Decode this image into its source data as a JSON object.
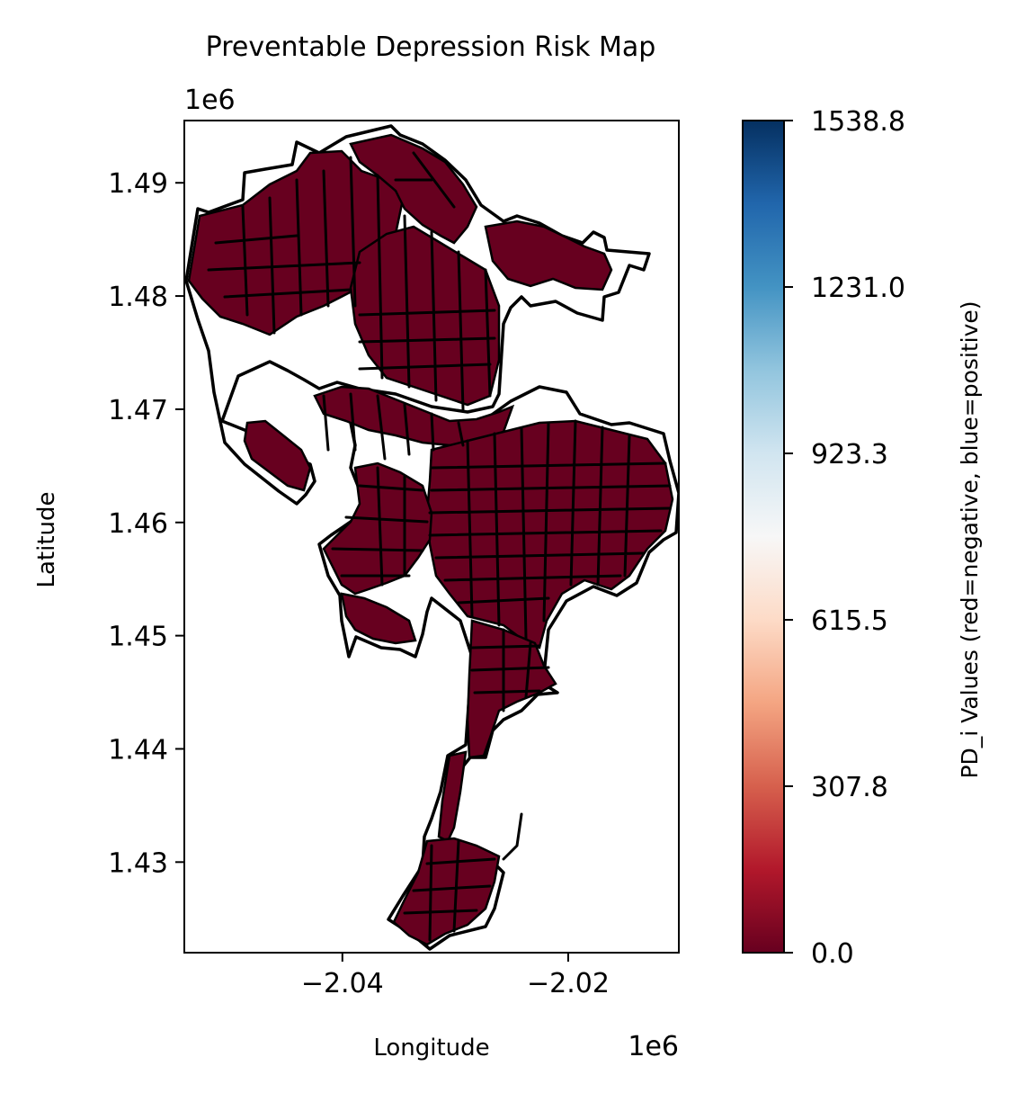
{
  "title": "Preventable Depression Risk Map",
  "x_axis": {
    "label": "Longitude",
    "offset_text": "1e6",
    "range": [
      -2.054,
      -2.0102
    ],
    "ticks": [
      {
        "value": -2.04,
        "label": "−2.04"
      },
      {
        "value": -2.02,
        "label": "−2.02"
      }
    ]
  },
  "y_axis": {
    "label": "Latitude",
    "offset_text": "1e6",
    "range": [
      1.422,
      1.4955
    ],
    "ticks": [
      {
        "value": 1.43,
        "label": "1.43"
      },
      {
        "value": 1.44,
        "label": "1.44"
      },
      {
        "value": 1.45,
        "label": "1.45"
      },
      {
        "value": 1.46,
        "label": "1.46"
      },
      {
        "value": 1.47,
        "label": "1.47"
      },
      {
        "value": 1.48,
        "label": "1.48"
      },
      {
        "value": 1.49,
        "label": "1.49"
      }
    ]
  },
  "colorbar": {
    "label": "PD_i Values (red=negative, blue=positive)",
    "colormap": "RdBu",
    "range": [
      0.0,
      1538.8
    ],
    "ticks": [
      {
        "value": 0.0,
        "label": "0.0"
      },
      {
        "value": 307.8,
        "label": "307.8"
      },
      {
        "value": 615.5,
        "label": "615.5"
      },
      {
        "value": 923.3,
        "label": "923.3"
      },
      {
        "value": 1231.0,
        "label": "1231.0"
      },
      {
        "value": 1538.8,
        "label": "1538.8"
      }
    ],
    "colors": [
      "#67001f",
      "#b2182b",
      "#d6604d",
      "#f4a582",
      "#fddbc7",
      "#f7f7f7",
      "#d1e5f0",
      "#92c5de",
      "#4393c3",
      "#2166ac",
      "#053061"
    ]
  },
  "map_colors": {
    "fill": "#67001f",
    "boundary": "#000000"
  }
}
